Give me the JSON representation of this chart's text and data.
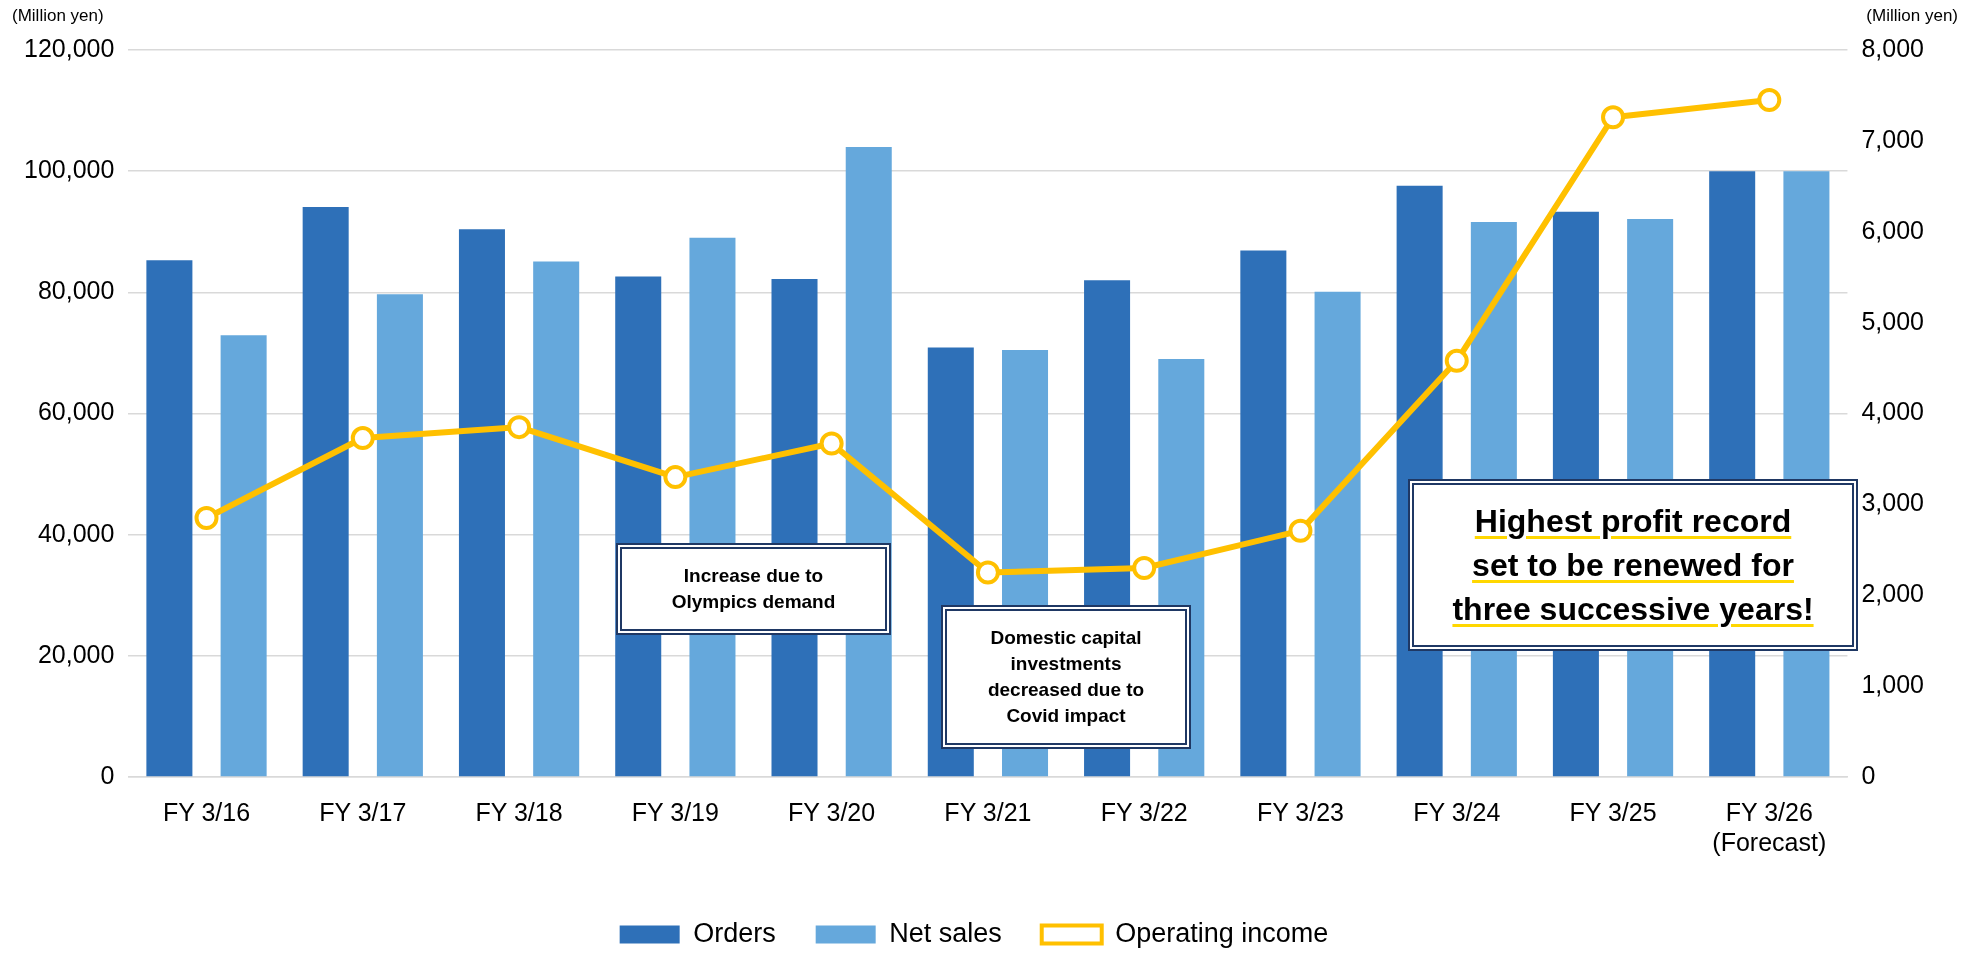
{
  "chart_data": {
    "type": "bar",
    "categories": [
      "FY 3/16",
      "FY 3/17",
      "FY 3/18",
      "FY 3/19",
      "FY 3/20",
      "FY 3/21",
      "FY 3/22",
      "FY 3/23",
      "FY 3/24",
      "FY 3/25",
      "FY 3/26\n(Forecast)"
    ],
    "series": [
      {
        "name": "Orders",
        "color": "#2e70b8",
        "values": [
          85300,
          94100,
          90400,
          82600,
          82200,
          70900,
          82000,
          86900,
          97600,
          93300,
          100000
        ]
      },
      {
        "name": "Net sales",
        "color": "#65a8dc",
        "values": [
          72900,
          79700,
          85100,
          89000,
          104000,
          70500,
          69000,
          80100,
          91600,
          92100,
          100000
        ]
      },
      {
        "name": "Operating income",
        "type": "line",
        "axis": "y2",
        "color": "#ffc000",
        "marker": "circle",
        "values": [
          2850,
          3730,
          3850,
          3300,
          3670,
          2250,
          2300,
          2710,
          4580,
          7260,
          7450
        ]
      }
    ],
    "ylabel": "(Million yen)",
    "y2label": "(Million yen)",
    "ylim": [
      0,
      120000
    ],
    "yticks": [
      0,
      {
        "value": 20000,
        "label": "20,000"
      },
      {
        "value": 40000,
        "label": "40,000"
      },
      {
        "value": 60000,
        "label": "60,000"
      },
      {
        "value": 80000,
        "label": "80,000"
      },
      {
        "value": 100000,
        "label": "100,000"
      },
      {
        "value": 120000,
        "label": "120,000"
      }
    ],
    "y2lim": [
      0,
      8000
    ],
    "y2ticks": [
      0,
      {
        "value": 1000,
        "label": "1,000"
      },
      {
        "value": 2000,
        "label": "2,000"
      },
      {
        "value": 3000,
        "label": "3,000"
      },
      {
        "value": 4000,
        "label": "4,000"
      },
      {
        "value": 5000,
        "label": "5,000"
      },
      {
        "value": 6000,
        "label": "6,000"
      },
      {
        "value": 7000,
        "label": "7,000"
      },
      {
        "value": 8000,
        "label": "8,000"
      }
    ],
    "grid": "y",
    "legend": "bottom",
    "annotations": [
      "Increase due to\nOlympics demand",
      "Domestic capital\ninvestments\ndecreased due to\nCovid impact",
      "Highest profit record\nset to be renewed for\nthree successive years!"
    ]
  }
}
